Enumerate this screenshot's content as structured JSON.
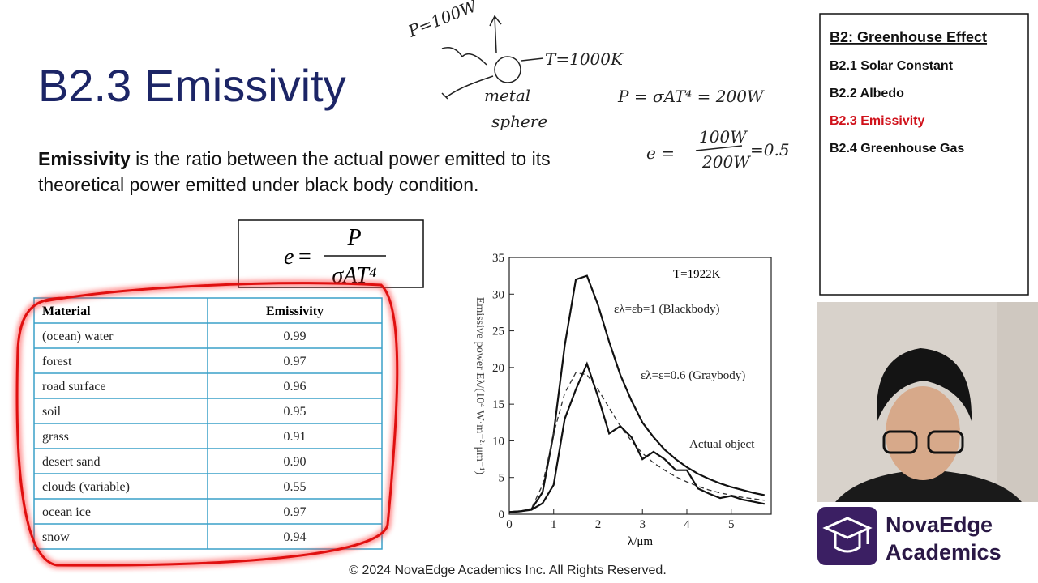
{
  "slide": {
    "title": "B2.3 Emissivity",
    "definition_term": "Emissivity",
    "definition_line1": " is the ratio between the actual power emitted to its",
    "definition_line2": "theoretical power emitted under black body condition.",
    "formula": {
      "lhs": "e",
      "equals": "=",
      "numerator": "P",
      "denominator": "σAT⁴"
    }
  },
  "notes": [
    "P=100W",
    "T=1000K",
    "metal",
    "sphere",
    "P = σAT⁴ = 200W",
    "e =",
    "100W",
    "200W",
    "=0.5"
  ],
  "table": {
    "headers": [
      "Material",
      "Emissivity"
    ],
    "rows": [
      [
        "(ocean) water",
        "0.99"
      ],
      [
        "forest",
        "0.97"
      ],
      [
        "road surface",
        "0.96"
      ],
      [
        "soil",
        "0.95"
      ],
      [
        "grass",
        "0.91"
      ],
      [
        "desert sand",
        "0.90"
      ],
      [
        "clouds (variable)",
        "0.55"
      ],
      [
        "ocean ice",
        "0.97"
      ],
      [
        "snow",
        "0.94"
      ]
    ]
  },
  "chart_data": {
    "type": "line",
    "annotation": "T=1922K",
    "x_label": "λ/μm",
    "y_label": "Emissive power Eλ/(10⁴ W·m⁻²·μm⁻¹)",
    "x": [
      0,
      0.25,
      0.5,
      0.75,
      1,
      1.25,
      1.5,
      1.75,
      2,
      2.25,
      2.5,
      2.75,
      3,
      3.25,
      3.5,
      3.75,
      4,
      4.25,
      4.5,
      4.75,
      5,
      5.25,
      5.5,
      5.75
    ],
    "xlim": [
      0,
      5.9
    ],
    "ylim": [
      0,
      35
    ],
    "xticks": [
      0,
      1,
      2,
      3,
      4,
      5
    ],
    "yticks": [
      0,
      5,
      10,
      15,
      20,
      25,
      30,
      35
    ],
    "series": [
      {
        "name": "ελ=εb=1 (Blackbody)",
        "color": "#111111",
        "dashed": false,
        "values": [
          0.3,
          0.4,
          0.7,
          3,
          11,
          23,
          32,
          32.5,
          28.5,
          23.5,
          19,
          15.5,
          12.5,
          10.5,
          8.8,
          7.5,
          6.4,
          5.5,
          4.8,
          4.2,
          3.7,
          3.3,
          2.9,
          2.6
        ]
      },
      {
        "name": "ελ=ε=0.6 (Graybody)",
        "color": "#333333",
        "dashed": true,
        "values": [
          0.3,
          0.4,
          0.8,
          4,
          11,
          16.5,
          19.3,
          19,
          17,
          14.5,
          12,
          10,
          8.3,
          7,
          6,
          5.1,
          4.4,
          3.8,
          3.3,
          2.9,
          2.6,
          2.3,
          2.1,
          1.9
        ]
      },
      {
        "name": "Actual object",
        "color": "#111111",
        "dashed": false,
        "values": [
          0.3,
          0.4,
          0.6,
          1.5,
          4,
          13,
          17,
          20.5,
          16,
          11,
          12,
          10.5,
          7.5,
          8.5,
          7.5,
          6,
          6,
          3.5,
          2.8,
          2.2,
          2.5,
          2,
          1.7,
          1.4
        ]
      }
    ]
  },
  "sidebar": {
    "heading": "B2: Greenhouse Effect",
    "items": [
      "B2.1 Solar Constant",
      "B2.2 Albedo",
      "B2.3 Emissivity",
      "B2.4 Greenhouse Gas"
    ],
    "active_index": 2,
    "active_color": "#d0121b"
  },
  "logo": {
    "line1": "NovaEdge",
    "line2": "Academics"
  },
  "footer": "© 2024 NovaEdge Academics Inc. All Rights Reserved."
}
